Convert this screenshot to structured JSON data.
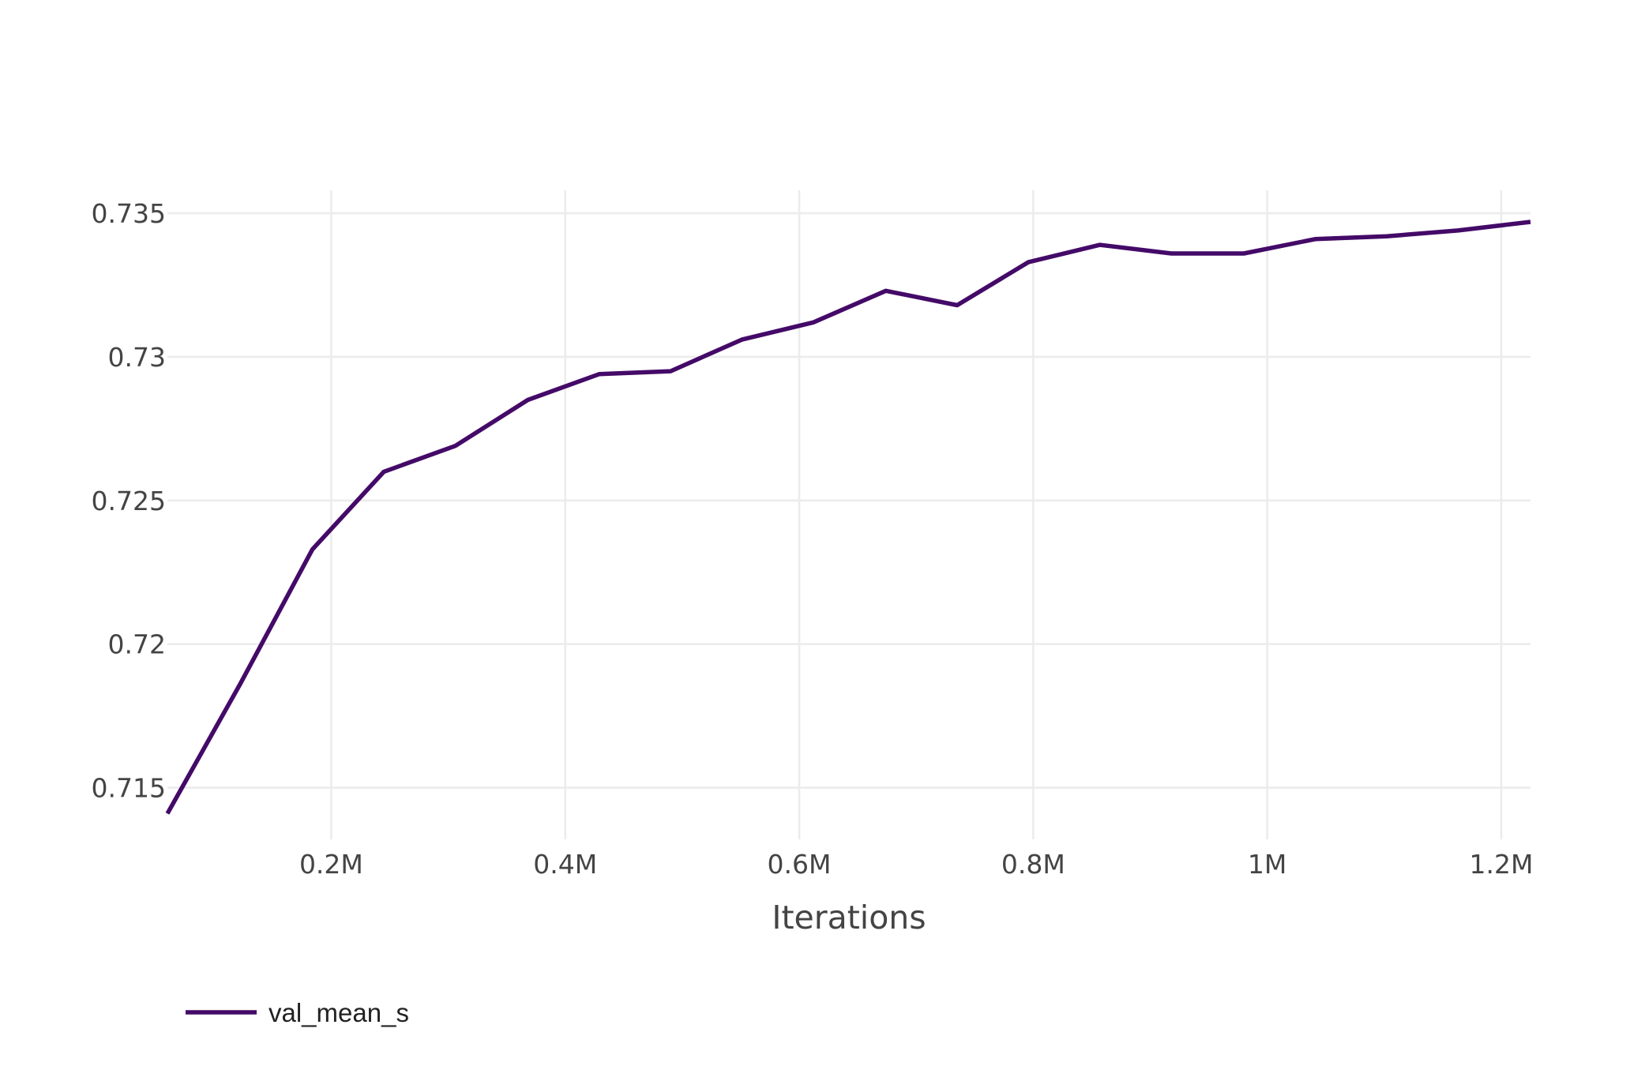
{
  "chart_data": {
    "type": "line",
    "title": "",
    "xlabel": "Iterations",
    "ylabel": "",
    "xlim": [
      60000,
      1225000
    ],
    "ylim": [
      0.7132,
      0.7358
    ],
    "x_ticks": [
      {
        "value": 200000,
        "label": "0.2M"
      },
      {
        "value": 400000,
        "label": "0.4M"
      },
      {
        "value": 600000,
        "label": "0.6M"
      },
      {
        "value": 800000,
        "label": "0.8M"
      },
      {
        "value": 1000000,
        "label": "1M"
      },
      {
        "value": 1200000,
        "label": "1.2M"
      }
    ],
    "y_ticks": [
      {
        "value": 0.715,
        "label": "0.715"
      },
      {
        "value": 0.72,
        "label": "0.72"
      },
      {
        "value": 0.725,
        "label": "0.725"
      },
      {
        "value": 0.73,
        "label": "0.73"
      },
      {
        "value": 0.735,
        "label": "0.735"
      }
    ],
    "grid": true,
    "legend_position": "bottom-left",
    "series": [
      {
        "name": "val_mean_s",
        "color": "#440a68",
        "x": [
          60000,
          122000,
          184000,
          245000,
          306000,
          368000,
          429000,
          490000,
          551000,
          612000,
          674000,
          735000,
          796000,
          857000,
          918000,
          980000,
          1041000,
          1102000,
          1163000,
          1225000
        ],
        "y": [
          0.7141,
          0.7186,
          0.7233,
          0.726,
          0.7269,
          0.7285,
          0.7294,
          0.7295,
          0.7306,
          0.7312,
          0.7323,
          0.7318,
          0.7333,
          0.7339,
          0.7336,
          0.7336,
          0.7341,
          0.7342,
          0.7344,
          0.7347
        ]
      }
    ]
  }
}
